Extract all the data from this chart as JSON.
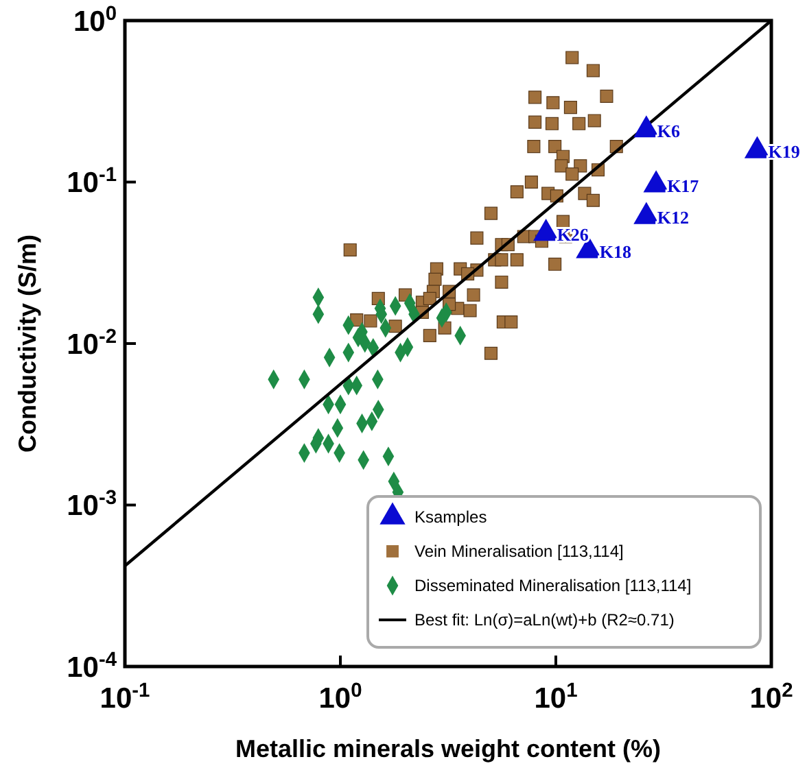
{
  "chart_data": {
    "type": "scatter",
    "xlabel": "Metallic minerals weight content (%)",
    "ylabel": "Conductivity (S/m)",
    "log": "xy",
    "xlim": [
      0.1,
      100
    ],
    "ylim": [
      0.0001,
      1
    ],
    "xticks": [
      {
        "value": 0.1,
        "label": "10$^{-1}$"
      },
      {
        "value": 1,
        "label": "10$^{0}$"
      },
      {
        "value": 10,
        "label": "10$^{1}$"
      },
      {
        "value": 100,
        "label": "10$^{2}$"
      }
    ],
    "yticks": [
      {
        "value": 0.0001,
        "label": "10$^{-4}$"
      },
      {
        "value": 0.001,
        "label": "10$^{-3}$"
      },
      {
        "value": 0.01,
        "label": "10$^{-2}$"
      },
      {
        "value": 0.1,
        "label": "10$^{-1}$"
      },
      {
        "value": 1,
        "label": "10$^{0}$"
      }
    ],
    "grid": false,
    "legend": "bottom right",
    "series": [
      {
        "name": "Ksamples",
        "type": "scatter",
        "marker": "triangle",
        "color": "#0a0ad2",
        "x": [
          26.3,
          86,
          29.2,
          26.3,
          9.0,
          14.2
        ],
        "values": [
          0.21,
          0.156,
          0.096,
          0.061,
          0.048,
          0.0375
        ]
      },
      {
        "name": "Vein Mineralisation [113,114]",
        "type": "scatter",
        "marker": "square",
        "color": "#a0703c",
        "x": [
          11.9,
          14.9,
          8.0,
          9.7,
          11.7,
          17.2,
          8.0,
          9.6,
          12.8,
          15.1,
          7.9,
          9.9,
          10.8,
          10.6,
          13.0,
          15.7,
          11.9,
          19.1,
          6.6,
          7.7,
          9.2,
          10.1,
          13.6,
          14.9,
          5.0,
          10.8,
          4.3,
          7.1,
          5.6,
          6.0,
          8.0,
          8.6,
          11.1,
          5.2,
          5.6,
          6.6,
          9.9,
          2.8,
          3.6,
          4.3,
          2.75,
          3.9,
          5.6,
          2.7,
          3.2,
          4.15,
          2.4,
          2.6,
          3.5,
          4.0,
          2.4,
          3.05,
          5.7,
          6.2,
          2.6,
          5.0,
          1.11,
          1.5,
          2.0,
          1.19,
          1.38,
          1.8,
          3.2
        ],
        "values": [
          0.59,
          0.49,
          0.335,
          0.31,
          0.29,
          0.34,
          0.235,
          0.23,
          0.23,
          0.24,
          0.166,
          0.166,
          0.144,
          0.126,
          0.126,
          0.119,
          0.112,
          0.166,
          0.087,
          0.1,
          0.085,
          0.082,
          0.085,
          0.077,
          0.064,
          0.057,
          0.045,
          0.046,
          0.041,
          0.041,
          0.046,
          0.043,
          0.046,
          0.033,
          0.033,
          0.033,
          0.031,
          0.029,
          0.029,
          0.0285,
          0.025,
          0.027,
          0.024,
          0.021,
          0.021,
          0.02,
          0.018,
          0.019,
          0.0165,
          0.016,
          0.0156,
          0.0125,
          0.0136,
          0.0136,
          0.0112,
          0.0087,
          0.038,
          0.019,
          0.02,
          0.014,
          0.0138,
          0.0128,
          0.0175
        ]
      },
      {
        "name": "Disseminated Mineralisation [113,114]",
        "type": "scatter",
        "marker": "diamond",
        "color": "#1e8c46",
        "x": [
          0.79,
          0.79,
          1.09,
          1.53,
          1.55,
          1.8,
          2.1,
          2.2,
          1.62,
          1.26,
          1.21,
          1.3,
          1.42,
          0.89,
          1.09,
          1.9,
          2.05,
          2.96,
          3.1,
          3.6,
          0.49,
          0.68,
          1.09,
          1.19,
          1.49,
          0.88,
          1.0,
          1.5,
          0.97,
          1.26,
          1.4,
          0.79,
          0.77,
          0.88,
          0.68,
          0.99,
          1.28,
          1.67,
          1.77,
          1.85
        ],
        "values": [
          0.0193,
          0.0152,
          0.013,
          0.0165,
          0.0152,
          0.0171,
          0.0178,
          0.0152,
          0.0125,
          0.0118,
          0.0109,
          0.0101,
          0.0094,
          0.0082,
          0.0088,
          0.0088,
          0.0095,
          0.0144,
          0.0156,
          0.0112,
          0.006,
          0.006,
          0.0055,
          0.0055,
          0.006,
          0.0042,
          0.0042,
          0.0039,
          0.003,
          0.0032,
          0.0033,
          0.0026,
          0.0024,
          0.0024,
          0.0021,
          0.0021,
          0.0019,
          0.002,
          0.0014,
          0.0012
        ]
      },
      {
        "name": "Best fit: Ln(σ)=aLn(wt)+b  (R2≈0.71)",
        "type": "line",
        "marker": "none",
        "line_style": "solid",
        "color": "#000000",
        "x": [
          0.1,
          100
        ],
        "values": [
          0.00042,
          1
        ]
      }
    ],
    "annotations": [
      {
        "text": "K6",
        "x": 26.3,
        "y": 0.21
      },
      {
        "text": "K19",
        "x": 86,
        "y": 0.156
      },
      {
        "text": "K17",
        "x": 29.2,
        "y": 0.096
      },
      {
        "text": "K12",
        "x": 26.3,
        "y": 0.061
      },
      {
        "text": "K26",
        "x": 9.0,
        "y": 0.048
      },
      {
        "text": "K18",
        "x": 14.2,
        "y": 0.0375
      }
    ]
  }
}
